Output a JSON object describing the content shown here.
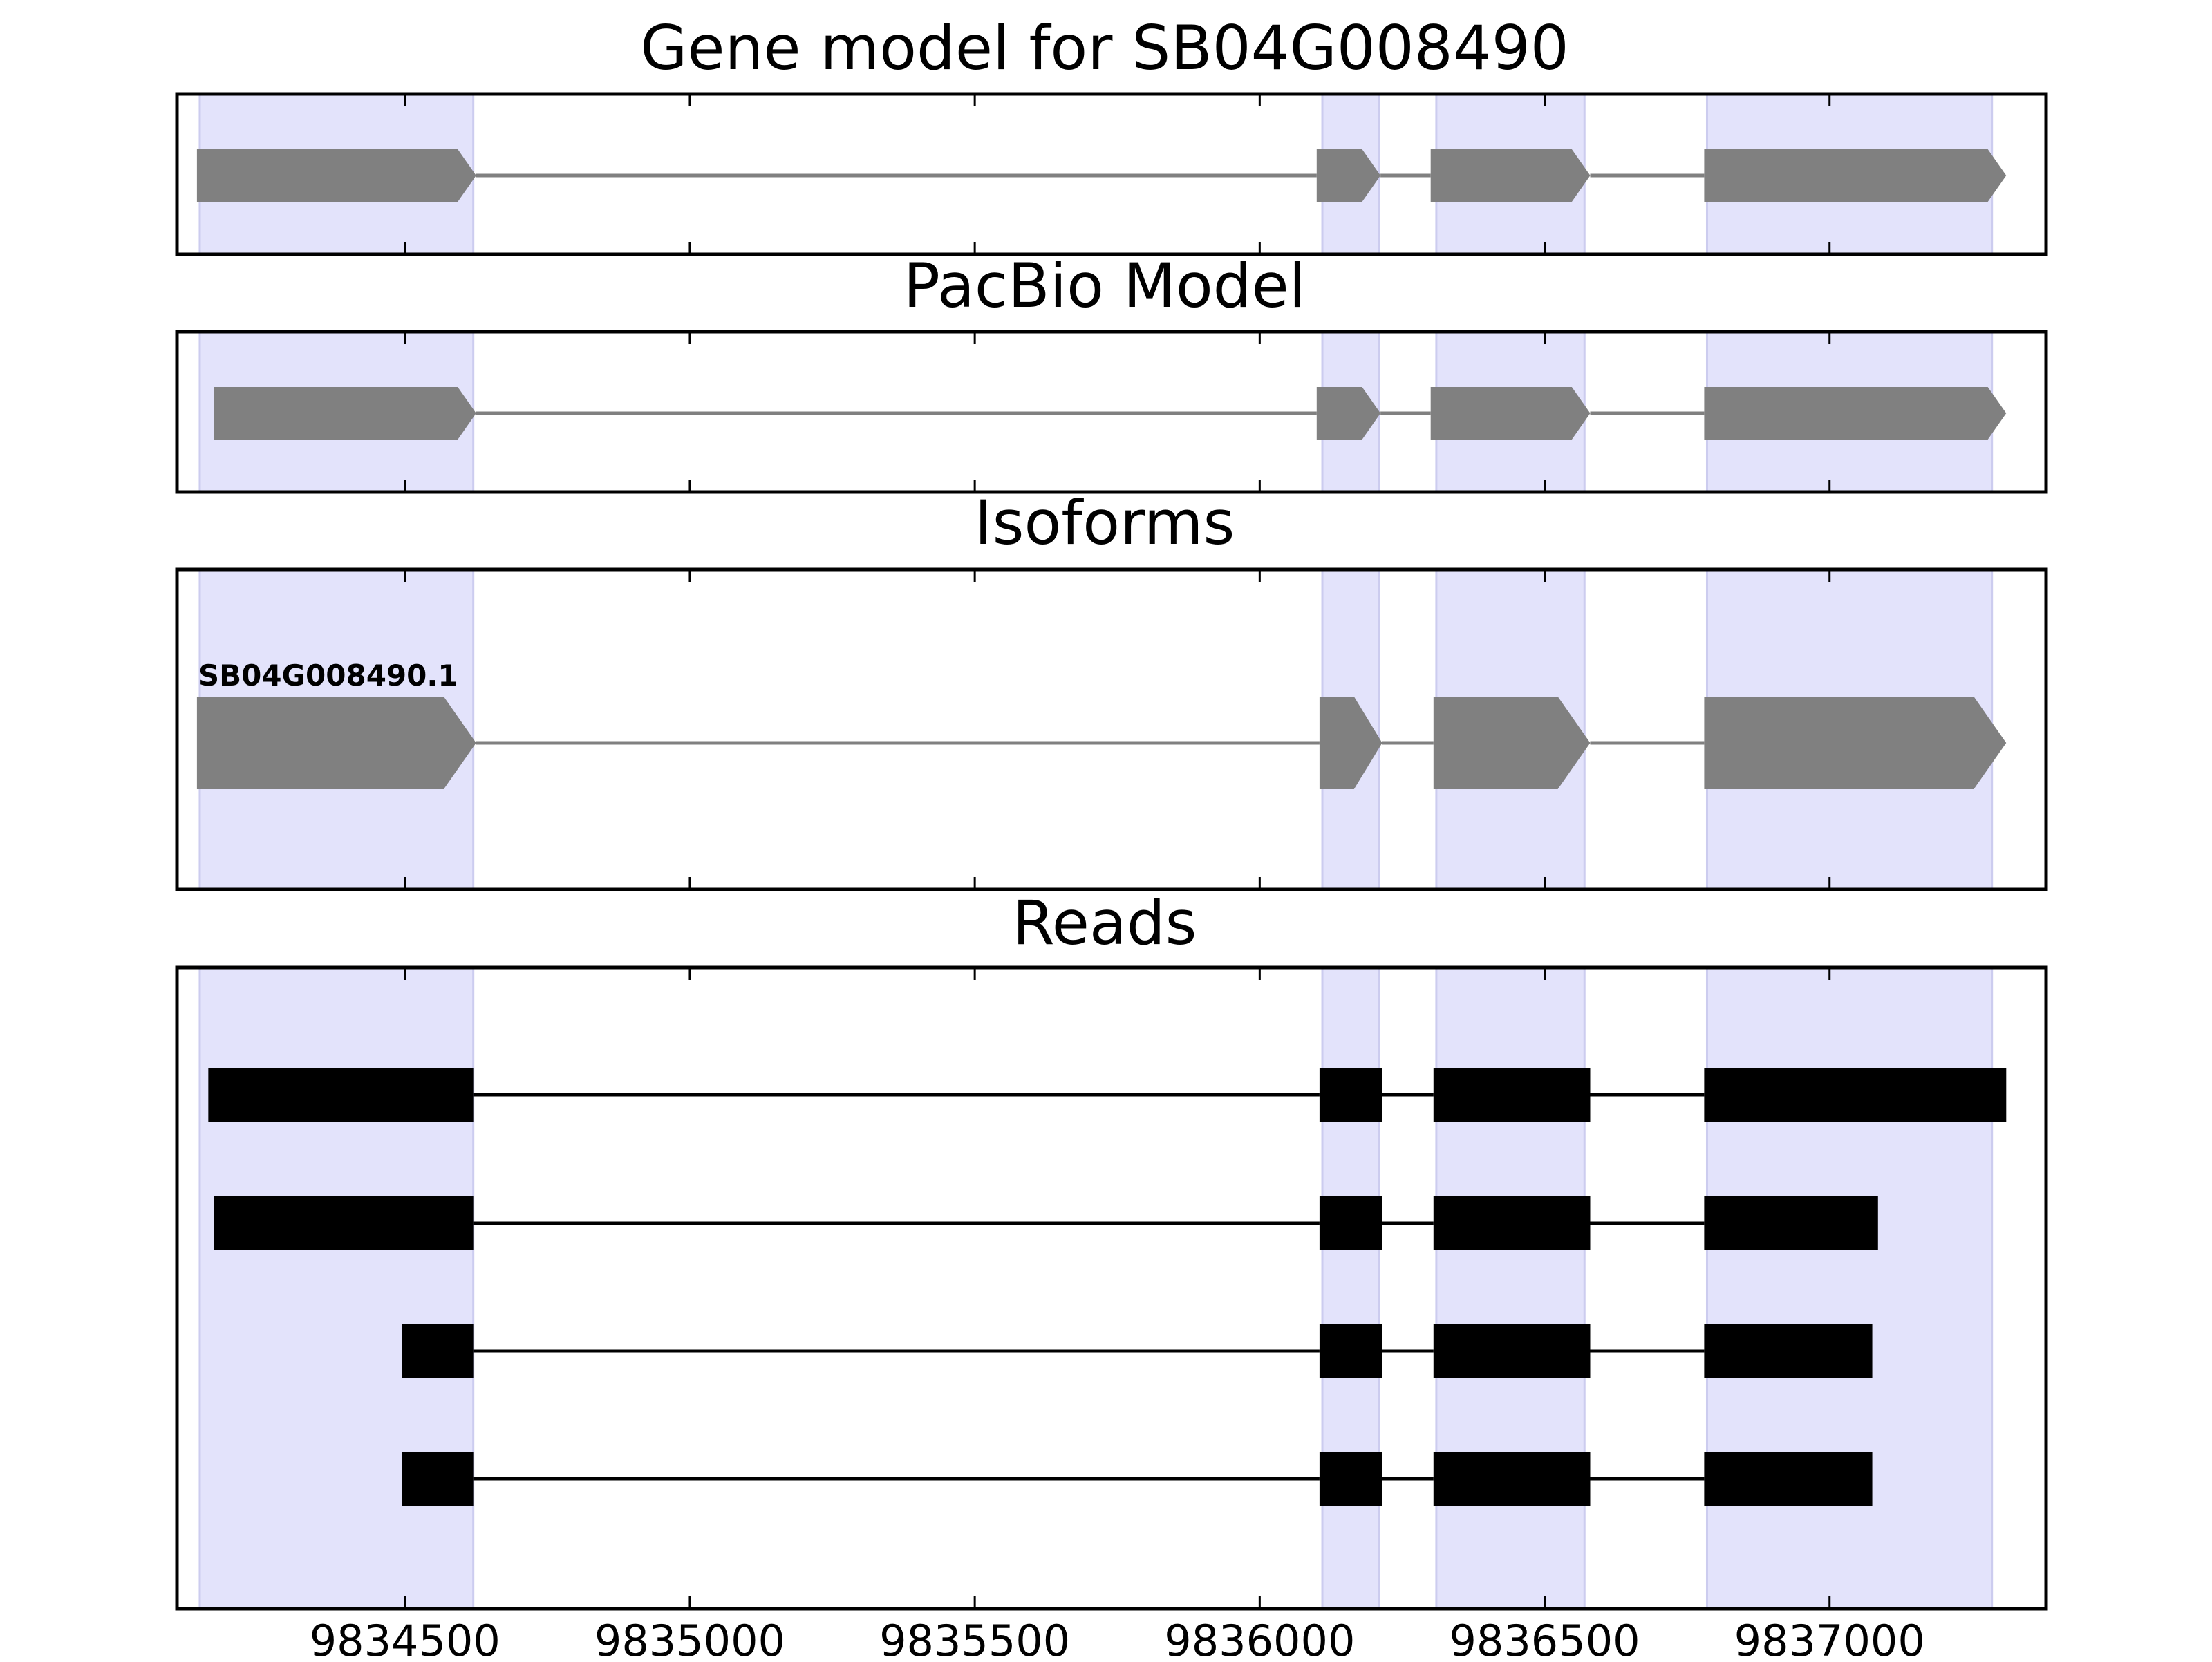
{
  "colors": {
    "background": "#ffffff",
    "frame": "#000000",
    "exon_band": "#e3e3fb",
    "exon_band_edge": "#ccccef",
    "model_feature": "#808080",
    "read_feature": "#000000"
  },
  "chart_data": {
    "type": "gene_model_tracks",
    "x_axis": {
      "xlim": [
        9834100,
        9837380
      ],
      "ticks": [
        9834500,
        9835000,
        9835500,
        9836000,
        9836500,
        9837000
      ],
      "tick_labels": [
        "9834500",
        "9835000",
        "9835500",
        "9836000",
        "9836500",
        "9837000"
      ]
    },
    "exon_regions": [
      [
        9834140,
        9834620
      ],
      [
        9836110,
        9836210
      ],
      [
        9836310,
        9836570
      ],
      [
        9836785,
        9837285
      ]
    ],
    "panels": [
      {
        "title": "Gene model for SB04G008490",
        "kind": "model",
        "features": [
          {
            "label": "",
            "strand": "+",
            "exons": [
              [
                9834135,
                9834625
              ],
              [
                9836100,
                9836212
              ],
              [
                9836300,
                9836580
              ],
              [
                9836780,
                9837310
              ]
            ]
          }
        ]
      },
      {
        "title": "PacBio Model",
        "kind": "model",
        "features": [
          {
            "label": "",
            "strand": "+",
            "exons": [
              [
                9834165,
                9834625
              ],
              [
                9836100,
                9836212
              ],
              [
                9836300,
                9836580
              ],
              [
                9836780,
                9837310
              ]
            ]
          }
        ]
      },
      {
        "title": "Isoforms",
        "kind": "model",
        "features": [
          {
            "label": "SB04G008490.1",
            "strand": "+",
            "exons": [
              [
                9834135,
                9834625
              ],
              [
                9836105,
                9836215
              ],
              [
                9836305,
                9836580
              ],
              [
                9836780,
                9837310
              ]
            ]
          }
        ]
      },
      {
        "title": "Reads",
        "kind": "reads",
        "features": [
          {
            "label": "",
            "exons": [
              [
                9834155,
                9834620
              ],
              [
                9836105,
                9836215
              ],
              [
                9836305,
                9836580
              ],
              [
                9836780,
                9837310
              ]
            ]
          },
          {
            "label": "",
            "exons": [
              [
                9834165,
                9834620
              ],
              [
                9836105,
                9836215
              ],
              [
                9836305,
                9836580
              ],
              [
                9836780,
                9837085
              ]
            ]
          },
          {
            "label": "",
            "exons": [
              [
                9834495,
                9834620
              ],
              [
                9836105,
                9836215
              ],
              [
                9836305,
                9836580
              ],
              [
                9836780,
                9837075
              ]
            ]
          },
          {
            "label": "",
            "exons": [
              [
                9834495,
                9834620
              ],
              [
                9836105,
                9836215
              ],
              [
                9836305,
                9836580
              ],
              [
                9836780,
                9837075
              ]
            ]
          }
        ]
      }
    ]
  }
}
